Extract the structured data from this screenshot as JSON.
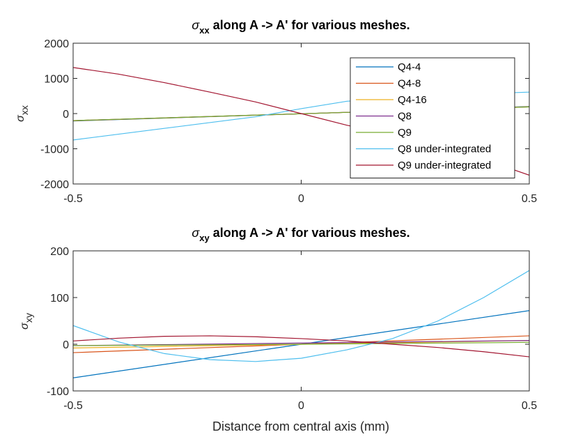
{
  "chart_data": [
    {
      "type": "line",
      "title": "σxx along A -> A' for various meshes.",
      "title_parts": {
        "symbol": "σ",
        "subscript": "xx",
        "rest": " along A -> A' for various meshes."
      },
      "xlabel": "",
      "ylabel": "σxx",
      "ylabel_parts": {
        "symbol": "σ",
        "subscript": "xx"
      },
      "xlim": [
        -0.5,
        0.5
      ],
      "ylim": [
        -2000,
        2000
      ],
      "xticks": [
        -0.5,
        0,
        0.5
      ],
      "yticks": [
        -2000,
        -1000,
        0,
        1000,
        2000
      ],
      "xtick_labels": [
        "-0.5",
        "0",
        "0.5"
      ],
      "ytick_labels": [
        "-2000",
        "-1000",
        "0",
        "1000",
        "2000"
      ],
      "legend_position": "top-right",
      "series": [
        {
          "name": "Q4-4",
          "color": "#0072BD",
          "x": [
            -0.5,
            0.5
          ],
          "y": [
            -210,
            200
          ]
        },
        {
          "name": "Q4-8",
          "color": "#D95319",
          "x": [
            -0.5,
            0.5
          ],
          "y": [
            -205,
            195
          ]
        },
        {
          "name": "Q4-16",
          "color": "#EDB120",
          "x": [
            -0.5,
            0.5
          ],
          "y": [
            -200,
            190
          ]
        },
        {
          "name": "Q8",
          "color": "#7E2F8E",
          "x": [
            -0.5,
            0.5
          ],
          "y": [
            -200,
            190
          ]
        },
        {
          "name": "Q9",
          "color": "#77AC30",
          "x": [
            -0.5,
            0.5
          ],
          "y": [
            -200,
            190
          ]
        },
        {
          "name": "Q8 under-integrated",
          "color": "#4DBEEE",
          "x": [
            -0.5,
            -0.3,
            -0.1,
            0,
            0.1,
            0.3,
            0.5
          ],
          "y": [
            -750,
            -420,
            -90,
            140,
            350,
            520,
            610
          ]
        },
        {
          "name": "Q9 under-integrated",
          "color": "#A2142F",
          "x": [
            -0.5,
            -0.4,
            -0.3,
            -0.2,
            -0.1,
            0,
            0.1,
            0.2,
            0.3,
            0.4,
            0.5
          ],
          "y": [
            1310,
            1120,
            880,
            610,
            330,
            0,
            -330,
            -610,
            -880,
            -1300,
            -1750
          ]
        }
      ]
    },
    {
      "type": "line",
      "title": "σxy along A -> A' for various meshes.",
      "title_parts": {
        "symbol": "σ",
        "subscript": "xy",
        "rest": " along A -> A' for various meshes."
      },
      "xlabel": "Distance from central axis (mm)",
      "ylabel": "σxy",
      "ylabel_parts": {
        "symbol": "σ",
        "subscript": "xy"
      },
      "xlim": [
        -0.5,
        0.5
      ],
      "ylim": [
        -100,
        200
      ],
      "xticks": [
        -0.5,
        0,
        0.5
      ],
      "yticks": [
        -100,
        0,
        100,
        200
      ],
      "xtick_labels": [
        "-0.5",
        "0",
        "0.5"
      ],
      "ytick_labels": [
        "-100",
        "0",
        "100",
        "200"
      ],
      "series": [
        {
          "name": "Q4-4",
          "color": "#0072BD",
          "x": [
            -0.5,
            0.5
          ],
          "y": [
            -72,
            72
          ]
        },
        {
          "name": "Q4-8",
          "color": "#D95319",
          "x": [
            -0.5,
            0.5
          ],
          "y": [
            -18,
            18
          ]
        },
        {
          "name": "Q4-16",
          "color": "#EDB120",
          "x": [
            -0.5,
            0.5
          ],
          "y": [
            -8,
            8
          ]
        },
        {
          "name": "Q8",
          "color": "#7E2F8E",
          "x": [
            -0.5,
            0.5
          ],
          "y": [
            -3,
            8
          ]
        },
        {
          "name": "Q9",
          "color": "#77AC30",
          "x": [
            -0.5,
            0,
            0.5
          ],
          "y": [
            -3,
            0,
            4
          ]
        },
        {
          "name": "Q8 under-integrated",
          "color": "#4DBEEE",
          "x": [
            -0.5,
            -0.4,
            -0.3,
            -0.2,
            -0.1,
            0,
            0.1,
            0.2,
            0.3,
            0.4,
            0.5
          ],
          "y": [
            40,
            5,
            -20,
            -33,
            -37,
            -30,
            -12,
            12,
            50,
            100,
            158
          ]
        },
        {
          "name": "Q9 under-integrated",
          "color": "#A2142F",
          "x": [
            -0.5,
            -0.4,
            -0.3,
            -0.2,
            -0.1,
            0,
            0.1,
            0.2,
            0.3,
            0.4,
            0.5
          ],
          "y": [
            7,
            13,
            17,
            18,
            16,
            12,
            7,
            0,
            -7,
            -16,
            -27
          ]
        }
      ]
    }
  ]
}
